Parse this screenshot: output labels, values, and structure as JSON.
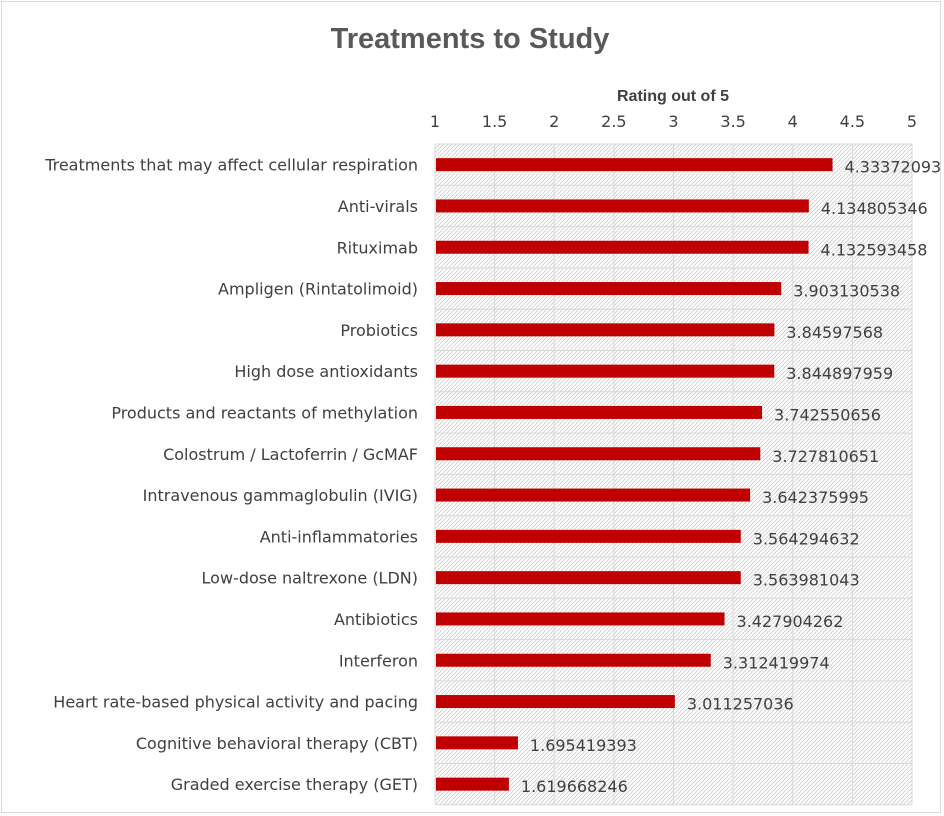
{
  "chart_data": {
    "type": "bar",
    "orientation": "horizontal",
    "title": "Treatments to Study",
    "xlabel": "Rating out of 5",
    "ylabel": "",
    "xlim": [
      1,
      5
    ],
    "x_ticks": [
      "1",
      "1.5",
      "2",
      "2.5",
      "3",
      "3.5",
      "4",
      "4.5",
      "5"
    ],
    "x_axis_position": "top",
    "grid": true,
    "legend": "none",
    "bar_color": "#c00000",
    "plot_background": "diagonal-hatch",
    "categories": [
      "Treatments that may affect cellular respiration",
      "Anti-virals",
      "Rituximab",
      "Ampligen (Rintatolimoid)",
      "Probiotics",
      "High dose antioxidants",
      "Products and reactants of methylation",
      "Colostrum / Lactoferrin / GcMAF",
      "Intravenous gammaglobulin (IVIG)",
      "Anti-inflammatories",
      "Low-dose naltrexone (LDN)",
      "Antibiotics",
      "Interferon",
      "Heart rate-based physical activity and pacing",
      "Cognitive behavioral therapy (CBT)",
      "Graded exercise therapy (GET)"
    ],
    "values": [
      4.33372093,
      4.134805346,
      4.132593458,
      3.903130538,
      3.84597568,
      3.844897959,
      3.742550656,
      3.727810651,
      3.642375995,
      3.564294632,
      3.563981043,
      3.427904262,
      3.312419974,
      3.011257036,
      1.695419393,
      1.619668246
    ],
    "data_labels": [
      "4.33372093",
      "4.134805346",
      "4.132593458",
      "3.903130538",
      "3.84597568",
      "3.844897959",
      "3.742550656",
      "3.727810651",
      "3.642375995",
      "3.564294632",
      "3.563981043",
      "3.427904262",
      "3.312419974",
      "3.011257036",
      "1.695419393",
      "1.619668246"
    ]
  }
}
